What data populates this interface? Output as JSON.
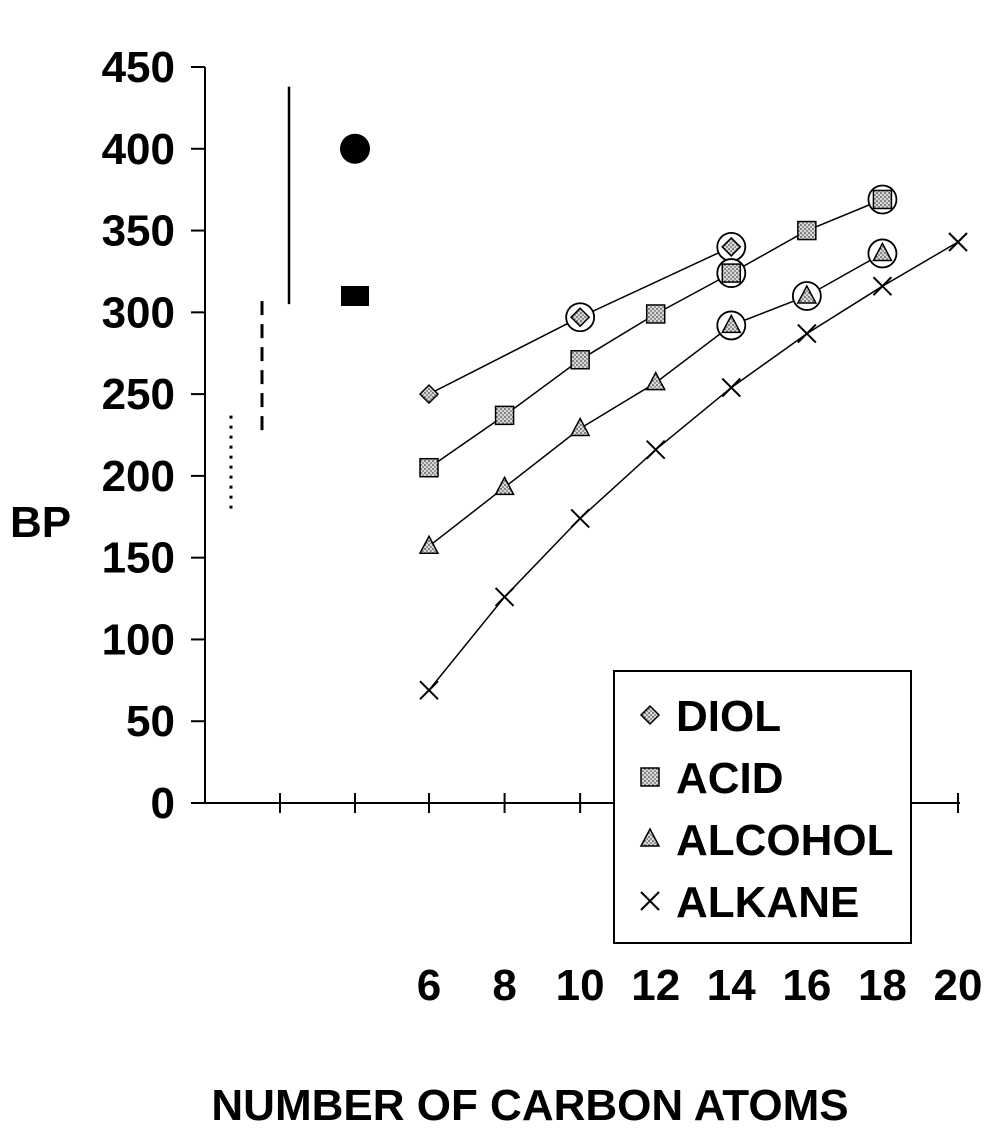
{
  "chart_data": {
    "type": "line",
    "title": "",
    "ylabel": "BP",
    "xlabel": "NUMBER OF CARBON ATOMS",
    "ylim": [
      0,
      450
    ],
    "yticks": [
      0,
      50,
      100,
      150,
      200,
      250,
      300,
      350,
      400,
      450
    ],
    "xticks": [
      6,
      8,
      10,
      12,
      14,
      16,
      18,
      20
    ],
    "legend_position": "lower-right",
    "series": [
      {
        "name": "DIOL",
        "marker": "diamond",
        "x": [
          6,
          10,
          14
        ],
        "y": [
          250,
          297,
          340
        ],
        "circled": [
          10,
          14
        ]
      },
      {
        "name": "ACID",
        "marker": "square",
        "x": [
          6,
          8,
          10,
          12,
          14,
          16,
          18
        ],
        "y": [
          205,
          237,
          271,
          299,
          324,
          350,
          369
        ],
        "circled": [
          14,
          18
        ]
      },
      {
        "name": "ALCOHOL",
        "marker": "triangle",
        "x": [
          6,
          8,
          10,
          12,
          14,
          16,
          18
        ],
        "y": [
          157,
          193,
          229,
          257,
          292,
          310,
          336
        ],
        "circled": [
          14,
          16,
          18
        ]
      },
      {
        "name": "ALKANE",
        "marker": "x",
        "x": [
          6,
          8,
          10,
          12,
          14,
          16,
          18,
          20
        ],
        "y": [
          69,
          126,
          174,
          216,
          254,
          287,
          316,
          343
        ]
      }
    ],
    "range_bars": [
      {
        "style": "dotted",
        "low": 180,
        "high": 240
      },
      {
        "style": "dashed",
        "low": 228,
        "high": 312
      },
      {
        "style": "solid",
        "low": 305,
        "high": 438
      }
    ],
    "reference_points": [
      {
        "marker": "circle",
        "y": 400
      },
      {
        "marker": "square",
        "y": 310
      }
    ]
  }
}
